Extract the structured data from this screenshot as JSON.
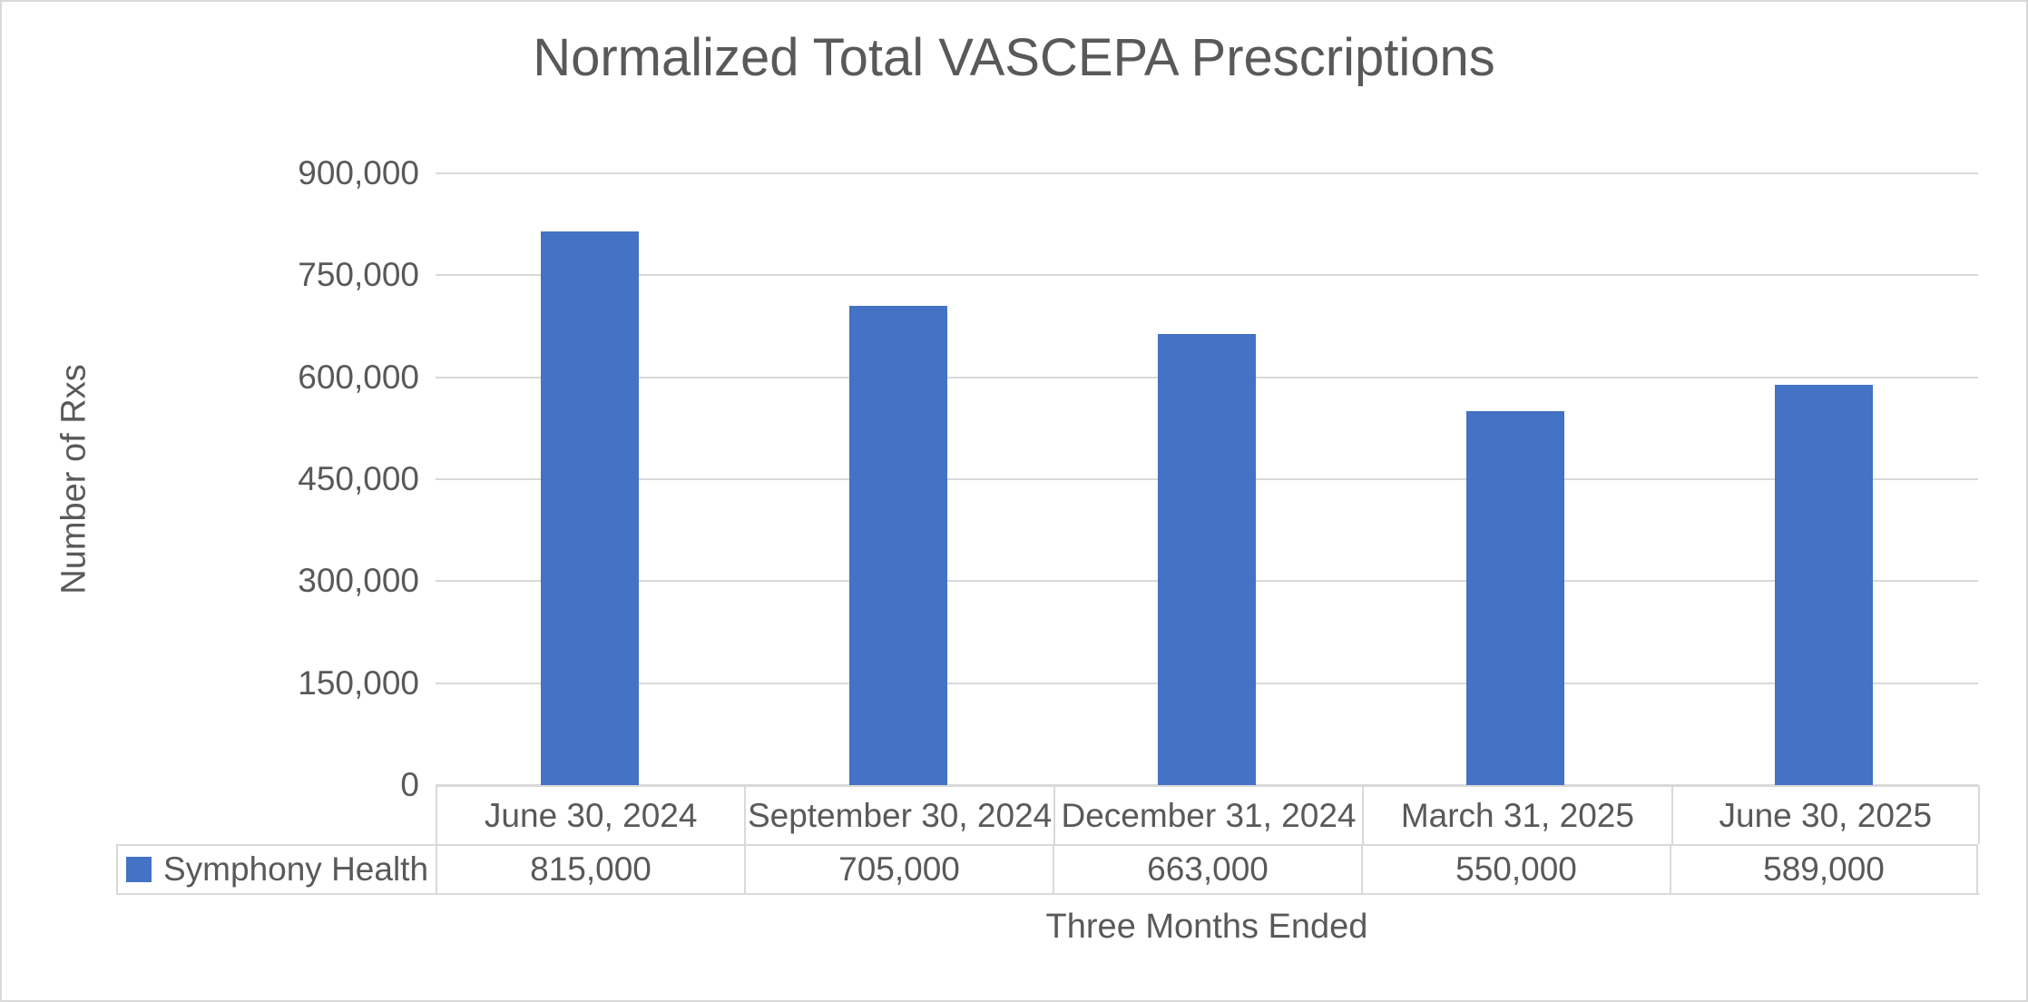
{
  "page": {
    "background_color": "#FFFFFF",
    "border_color": "#D9D9D9"
  },
  "chart_data": {
    "type": "bar",
    "title": "Normalized Total VASCEPA Prescriptions",
    "xlabel": "Three Months Ended",
    "ylabel": "Number of Rxs",
    "categories": [
      "June 30, 2024",
      "September 30, 2024",
      "December 31, 2024",
      "March 31, 2025",
      "June 30, 2025"
    ],
    "series": [
      {
        "name": "Symphony Health",
        "color": "#4472C4",
        "values": [
          815000,
          705000,
          663000,
          550000,
          589000
        ],
        "value_labels": [
          "815,000",
          "705,000",
          "663,000",
          "550,000",
          "589,000"
        ]
      }
    ],
    "ylim": [
      0,
      900000
    ],
    "ytick_values": [
      0,
      150000,
      300000,
      450000,
      600000,
      750000,
      900000
    ],
    "ytick_labels": [
      "0",
      "150,000",
      "300,000",
      "450,000",
      "600,000",
      "750,000",
      "900,000"
    ],
    "grid": true,
    "gridline_color": "#D9D9D9",
    "text_color": "#595959",
    "bar_color": "#4472C4",
    "legend_position": "bottom-left of data table",
    "data_table_shown": true
  }
}
